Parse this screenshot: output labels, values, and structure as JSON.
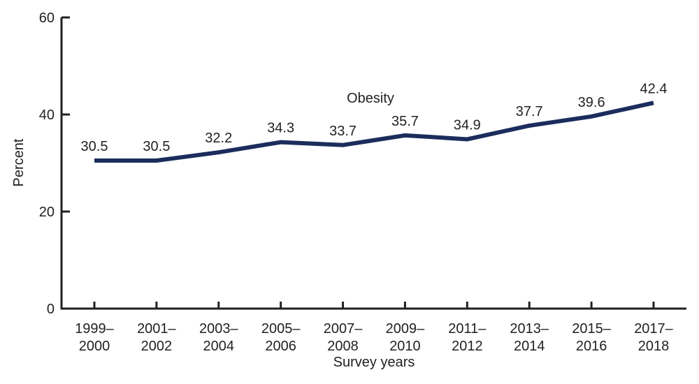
{
  "chart_data": {
    "type": "line",
    "title": "",
    "categories": [
      "1999–2000",
      "2001–2002",
      "2003–2004",
      "2005–2006",
      "2007–2008",
      "2009–2010",
      "2011–2012",
      "2013–2014",
      "2015–2016",
      "2017–2018"
    ],
    "series": [
      {
        "name": "Obesity",
        "values": [
          30.5,
          30.5,
          32.2,
          34.3,
          33.7,
          35.7,
          34.9,
          37.7,
          39.6,
          42.4
        ]
      }
    ],
    "data_labels": [
      "30.5",
      "30.5",
      "32.2",
      "34.3",
      "33.7",
      "35.7",
      "34.9",
      "37.7",
      "39.6",
      "42.4"
    ],
    "xlabel": "Survey years",
    "ylabel": "Percent",
    "yticks": [
      0,
      20,
      40,
      60
    ],
    "ylim": [
      0,
      60
    ],
    "grid": false,
    "legend_position": "inline-annotation-above-line",
    "line_color": "#1b2d5c",
    "axis_color": "#231f20",
    "text_color": "#231f20",
    "background_color": "#ffffff"
  }
}
